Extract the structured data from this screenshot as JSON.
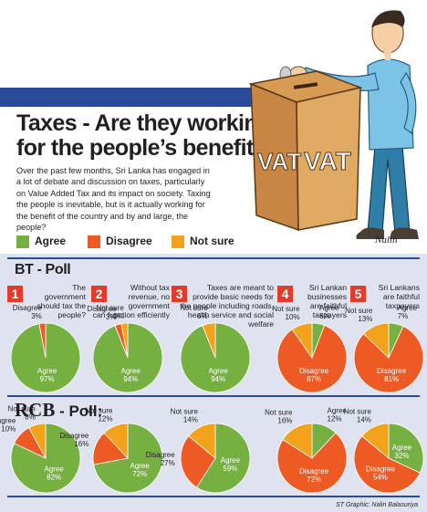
{
  "banner": {
    "prefix": "BT - ",
    "brand": "RCB",
    "suffix": " Poll:"
  },
  "headline": "Taxes - Are they working for the people’s benefit?",
  "intro": "Over the past few months, Sri Lanka has engaged in a lot of debate and discussion on taxes, particularly on Value Added Tax  and its impact on society. Taxing the people is inevitable, but is it actually working for the benefit of the country and by and large, the people?",
  "illustration": {
    "box_labels": [
      "VAT",
      "VAT"
    ],
    "signature": "Nalin"
  },
  "colors": {
    "agree": "#76b041",
    "disagree": "#ee5a24",
    "not_sure": "#f2a31b",
    "banner": "#2a4a9a",
    "number_badge": "#e53a2a",
    "panel": "#dfe3f0"
  },
  "legend": [
    {
      "label": "Agree",
      "color": "#76b041"
    },
    {
      "label": "Disagree",
      "color": "#ee5a24"
    },
    {
      "label": "Not sure",
      "color": "#f2a31b"
    }
  ],
  "sections": {
    "bt_title": "BT - Poll",
    "rcb_brand": "RCB",
    "rcb_suffix": " - Poll:"
  },
  "questions": [
    {
      "number": "1",
      "text": [
        "The",
        "government",
        "should tax the",
        "people?"
      ]
    },
    {
      "number": "2",
      "text": [
        "Without tax",
        "revenue, no",
        "government",
        "can function efficiently"
      ]
    },
    {
      "number": "3",
      "text": [
        "Taxes are meant to",
        "provide basic needs for",
        "the people including roads,",
        "health service and social welfare"
      ]
    },
    {
      "number": "4",
      "text": [
        "Sri Lankan",
        "businesses",
        "are faithful",
        "taxpayers"
      ]
    },
    {
      "number": "5",
      "text": [
        "Sri Lankans",
        "are faithful",
        "taxpayers"
      ]
    }
  ],
  "chart_data": [
    {
      "type": "pie",
      "group": "BT - Poll",
      "question": "1",
      "slices": [
        {
          "label": "Agree",
          "value": 97
        },
        {
          "label": "Disagree",
          "value": 3
        }
      ]
    },
    {
      "type": "pie",
      "group": "BT - Poll",
      "question": "2",
      "slices": [
        {
          "label": "Agree",
          "value": 94
        },
        {
          "label": "Disagree",
          "value": 3
        },
        {
          "label": "Not sure",
          "value": 3
        }
      ]
    },
    {
      "type": "pie",
      "group": "BT - Poll",
      "question": "3",
      "slices": [
        {
          "label": "Agree",
          "value": 94
        },
        {
          "label": "Not sure",
          "value": 6
        }
      ]
    },
    {
      "type": "pie",
      "group": "BT - Poll",
      "question": "4",
      "slices": [
        {
          "label": "Agree",
          "value": 6
        },
        {
          "label": "Disagree",
          "value": 87
        },
        {
          "label": "Not sure",
          "value": 10
        }
      ]
    },
    {
      "type": "pie",
      "group": "BT - Poll",
      "question": "5",
      "slices": [
        {
          "label": "Agree",
          "value": 7
        },
        {
          "label": "Disagree",
          "value": 81
        },
        {
          "label": "Not sure",
          "value": 13
        }
      ]
    },
    {
      "type": "pie",
      "group": "RCB - Poll",
      "question": "1",
      "slices": [
        {
          "label": "Agree",
          "value": 82
        },
        {
          "label": "Disagree",
          "value": 10
        },
        {
          "label": "Not sure",
          "value": 8
        }
      ]
    },
    {
      "type": "pie",
      "group": "RCB - Poll",
      "question": "2",
      "slices": [
        {
          "label": "Agree",
          "value": 72
        },
        {
          "label": "Disagree",
          "value": 16
        },
        {
          "label": "Not sure",
          "value": 12
        }
      ]
    },
    {
      "type": "pie",
      "group": "RCB - Poll",
      "question": "3",
      "slices": [
        {
          "label": "Agree",
          "value": 59
        },
        {
          "label": "Disagree",
          "value": 27
        },
        {
          "label": "Not sure",
          "value": 14
        }
      ]
    },
    {
      "type": "pie",
      "group": "RCB - Poll",
      "question": "4",
      "slices": [
        {
          "label": "Agree",
          "value": 12
        },
        {
          "label": "Disagree",
          "value": 72
        },
        {
          "label": "Not sure",
          "value": 16
        }
      ]
    },
    {
      "type": "pie",
      "group": "RCB - Poll",
      "question": "5",
      "slices": [
        {
          "label": "Agree",
          "value": 32
        },
        {
          "label": "Disagree",
          "value": 54
        },
        {
          "label": "Not sure",
          "value": 14
        }
      ]
    }
  ],
  "credit": "ST Graphic: Nalin Balasuriya"
}
